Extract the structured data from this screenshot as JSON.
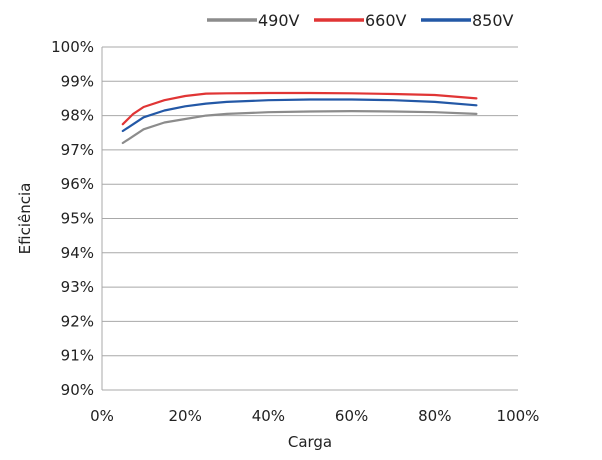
{
  "chart_data": {
    "type": "line",
    "xlabel": "Carga",
    "ylabel": "Eficiência",
    "xlim": [
      0,
      100
    ],
    "ylim": [
      90,
      100
    ],
    "x_ticks": [
      0,
      20,
      40,
      60,
      80,
      100
    ],
    "x_tick_labels": [
      "0%",
      "20%",
      "40%",
      "60%",
      "80%",
      "100%"
    ],
    "y_ticks": [
      90,
      91,
      92,
      93,
      94,
      95,
      96,
      97,
      98,
      99,
      100
    ],
    "y_tick_labels": [
      "90%",
      "91%",
      "92%",
      "93%",
      "94%",
      "95%",
      "96%",
      "97%",
      "98%",
      "99%",
      "100%"
    ],
    "grid": "horizontal",
    "legend_position": "top",
    "series": [
      {
        "name": "490V",
        "color": "#8c8c8c",
        "x": [
          5,
          7.5,
          10,
          15,
          20,
          25,
          30,
          40,
          50,
          60,
          70,
          80,
          90
        ],
        "y": [
          97.2,
          97.4,
          97.6,
          97.8,
          97.9,
          98.0,
          98.05,
          98.1,
          98.12,
          98.13,
          98.12,
          98.1,
          98.05
        ]
      },
      {
        "name": "660V",
        "color": "#e03535",
        "x": [
          5,
          7.5,
          10,
          15,
          20,
          25,
          30,
          40,
          50,
          60,
          70,
          80,
          90
        ],
        "y": [
          97.75,
          98.05,
          98.25,
          98.45,
          98.57,
          98.64,
          98.65,
          98.66,
          98.66,
          98.65,
          98.63,
          98.6,
          98.5
        ]
      },
      {
        "name": "850V",
        "color": "#2358a6",
        "x": [
          5,
          7.5,
          10,
          15,
          20,
          25,
          30,
          40,
          50,
          60,
          70,
          80,
          90
        ],
        "y": [
          97.55,
          97.75,
          97.95,
          98.15,
          98.27,
          98.35,
          98.4,
          98.45,
          98.47,
          98.47,
          98.45,
          98.4,
          98.3
        ]
      }
    ]
  }
}
